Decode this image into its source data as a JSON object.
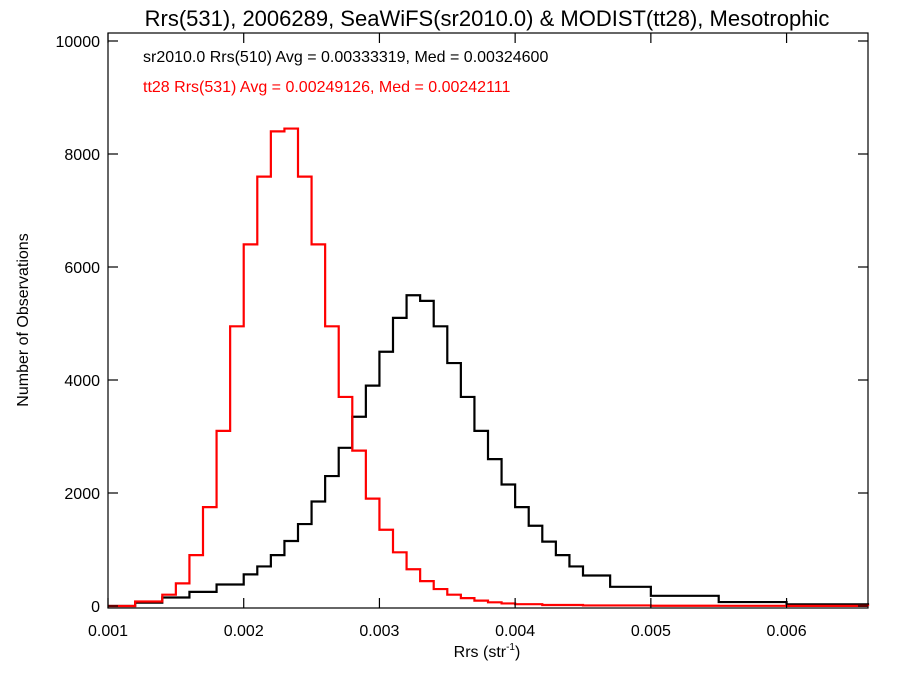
{
  "chart_data": {
    "type": "line",
    "title": "Rrs(531), 2006289, SeaWiFS(sr2010.0) & MODIST(tt28), Mesotrophic",
    "xlabel": "Rrs (str",
    "xlabel_sup": "-1",
    "xlabel_close": ")",
    "ylabel": "Number of Observations",
    "xlim": [
      0.001,
      0.0066
    ],
    "ylim": [
      0,
      10000
    ],
    "xticks": [
      0.001,
      0.002,
      0.003,
      0.004,
      0.005,
      0.006
    ],
    "xtick_labels": [
      "0.001",
      "0.002",
      "0.003",
      "0.004",
      "0.005",
      "0.006"
    ],
    "yticks": [
      0,
      2000,
      4000,
      6000,
      8000,
      10000
    ],
    "ytick_labels": [
      "0",
      "2000",
      "4000",
      "6000",
      "8000",
      "10000"
    ],
    "grid": false,
    "annotations": [
      {
        "text": "sr2010.0 Rrs(510) Avg = 0.00333319, Med = 0.00324600",
        "color": "#000000"
      },
      {
        "text": "tt28 Rrs(531) Avg = 0.00249126, Med = 0.00242111",
        "color": "#ff0000"
      }
    ],
    "series": [
      {
        "color": "#000000",
        "style": "step",
        "x": [
          0.001,
          0.0012,
          0.0014,
          0.0016,
          0.0018,
          0.002,
          0.0021,
          0.0022,
          0.0023,
          0.0024,
          0.0025,
          0.0026,
          0.0027,
          0.0028,
          0.0029,
          0.003,
          0.0031,
          0.0032,
          0.0033,
          0.0034,
          0.0035,
          0.0036,
          0.0037,
          0.0038,
          0.0039,
          0.004,
          0.0041,
          0.0042,
          0.0043,
          0.0044,
          0.0045,
          0.0047,
          0.005,
          0.0055,
          0.006,
          0.0066
        ],
        "y": [
          0,
          60,
          150,
          250,
          380,
          560,
          700,
          900,
          1150,
          1450,
          1850,
          2300,
          2800,
          3350,
          3900,
          4500,
          5100,
          5500,
          5400,
          4950,
          4300,
          3700,
          3100,
          2600,
          2150,
          1750,
          1420,
          1140,
          900,
          700,
          540,
          340,
          180,
          70,
          30,
          10
        ]
      },
      {
        "color": "#ff0000",
        "style": "step",
        "x": [
          0.001,
          0.0012,
          0.0014,
          0.0015,
          0.0016,
          0.0017,
          0.0018,
          0.0019,
          0.002,
          0.0021,
          0.0022,
          0.0023,
          0.0024,
          0.0025,
          0.0026,
          0.0027,
          0.0028,
          0.0029,
          0.003,
          0.0031,
          0.0032,
          0.0033,
          0.0034,
          0.0035,
          0.0036,
          0.0037,
          0.0038,
          0.0039,
          0.004,
          0.0042,
          0.0045,
          0.005,
          0.0055,
          0.006,
          0.0066
        ],
        "y": [
          0,
          80,
          200,
          400,
          900,
          1750,
          3100,
          4950,
          6400,
          7600,
          8400,
          8450,
          7600,
          6400,
          4950,
          3700,
          2750,
          1900,
          1350,
          950,
          650,
          440,
          300,
          200,
          140,
          95,
          65,
          45,
          32,
          18,
          10,
          5,
          3,
          2,
          1
        ]
      }
    ]
  }
}
